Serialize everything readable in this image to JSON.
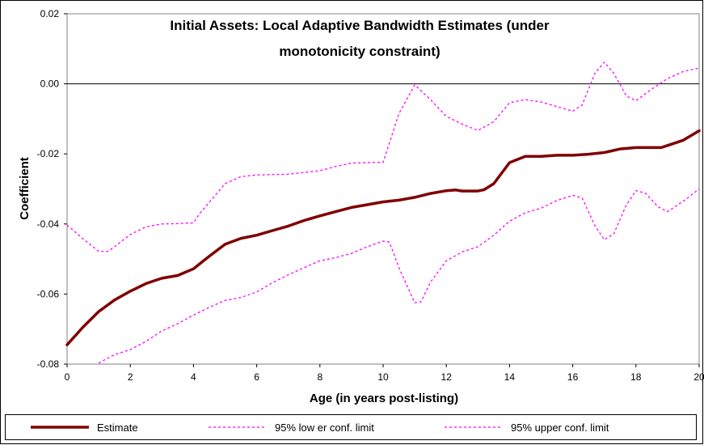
{
  "chart_data": {
    "type": "line",
    "title": "Initial Assets: Local Adaptive Bandwidth Estimates (under monotonicity constraint)",
    "title_lines": [
      "Initial Assets: Local Adaptive Bandwidth Estimates (under",
      "monotonicity constraint)"
    ],
    "xlabel": "Age (in years post-listing)",
    "ylabel": "Coefficient",
    "xlim": [
      0,
      20
    ],
    "ylim": [
      -0.08,
      0.02
    ],
    "x_ticks": [
      "0",
      "2",
      "4",
      "6",
      "8",
      "10",
      "12",
      "14",
      "16",
      "18",
      "20"
    ],
    "y_ticks": [
      "0.02",
      "0.00",
      "-0.02",
      "-0.04",
      "-0.06",
      "-0.08"
    ],
    "grid": false,
    "legend_position": "bottom",
    "series": [
      {
        "name": "Estimate",
        "color": "#800000",
        "style": "solid",
        "points": [
          [
            0,
            -0.0745
          ],
          [
            0.5,
            -0.0695
          ],
          [
            1,
            -0.065
          ],
          [
            1.5,
            -0.0617
          ],
          [
            2,
            -0.0592
          ],
          [
            2.5,
            -0.057
          ],
          [
            3,
            -0.0555
          ],
          [
            3.5,
            -0.0547
          ],
          [
            4,
            -0.0528
          ],
          [
            4.5,
            -0.0492
          ],
          [
            5,
            -0.0458
          ],
          [
            5.5,
            -0.0441
          ],
          [
            6,
            -0.0432
          ],
          [
            6.5,
            -0.0419
          ],
          [
            7,
            -0.0406
          ],
          [
            7.5,
            -0.039
          ],
          [
            8,
            -0.0377
          ],
          [
            8.5,
            -0.0365
          ],
          [
            9,
            -0.0353
          ],
          [
            9.5,
            -0.0345
          ],
          [
            10,
            -0.0337
          ],
          [
            10.5,
            -0.0332
          ],
          [
            11,
            -0.0324
          ],
          [
            11.5,
            -0.0313
          ],
          [
            12,
            -0.0305
          ],
          [
            12.3,
            -0.0303
          ],
          [
            12.5,
            -0.0306
          ],
          [
            13,
            -0.0306
          ],
          [
            13.2,
            -0.0302
          ],
          [
            13.5,
            -0.0285
          ],
          [
            14,
            -0.0225
          ],
          [
            14.5,
            -0.0207
          ],
          [
            15,
            -0.0207
          ],
          [
            15.5,
            -0.0204
          ],
          [
            16,
            -0.0204
          ],
          [
            16.5,
            -0.0201
          ],
          [
            17,
            -0.0196
          ],
          [
            17.5,
            -0.0186
          ],
          [
            18,
            -0.0182
          ],
          [
            18.5,
            -0.0182
          ],
          [
            18.8,
            -0.0182
          ],
          [
            19,
            -0.0176
          ],
          [
            19.5,
            -0.0161
          ],
          [
            20,
            -0.0134
          ]
        ]
      },
      {
        "name": "95% low er conf. limit",
        "color": "#ff00ff",
        "style": "dashed",
        "points": [
          [
            1,
            -0.0797
          ],
          [
            1.5,
            -0.0773
          ],
          [
            2,
            -0.0759
          ],
          [
            2.5,
            -0.0735
          ],
          [
            3,
            -0.0705
          ],
          [
            3.5,
            -0.0685
          ],
          [
            4,
            -0.066
          ],
          [
            4.5,
            -0.0638
          ],
          [
            5,
            -0.0618
          ],
          [
            5.5,
            -0.061
          ],
          [
            6,
            -0.0594
          ],
          [
            6.5,
            -0.0568
          ],
          [
            7,
            -0.0545
          ],
          [
            7.5,
            -0.0525
          ],
          [
            8,
            -0.0505
          ],
          [
            8.5,
            -0.0496
          ],
          [
            9,
            -0.0484
          ],
          [
            9.5,
            -0.0465
          ],
          [
            10,
            -0.0449
          ],
          [
            10.2,
            -0.0452
          ],
          [
            10.5,
            -0.0525
          ],
          [
            11,
            -0.0625
          ],
          [
            11.2,
            -0.0622
          ],
          [
            11.5,
            -0.0566
          ],
          [
            12,
            -0.0505
          ],
          [
            12.5,
            -0.048
          ],
          [
            13,
            -0.0465
          ],
          [
            13.5,
            -0.0432
          ],
          [
            14,
            -0.0392
          ],
          [
            14.5,
            -0.0368
          ],
          [
            15,
            -0.0355
          ],
          [
            15.5,
            -0.0333
          ],
          [
            16,
            -0.0318
          ],
          [
            16.3,
            -0.0326
          ],
          [
            16.7,
            -0.0405
          ],
          [
            17,
            -0.0445
          ],
          [
            17.3,
            -0.0428
          ],
          [
            17.7,
            -0.0345
          ],
          [
            18,
            -0.0305
          ],
          [
            18.3,
            -0.0312
          ],
          [
            18.7,
            -0.0351
          ],
          [
            19,
            -0.0365
          ],
          [
            19.5,
            -0.0335
          ],
          [
            20,
            -0.03
          ]
        ]
      },
      {
        "name": "95% upper conf. limit",
        "color": "#ff00ff",
        "style": "dashed",
        "points": [
          [
            0,
            -0.0403
          ],
          [
            0.5,
            -0.0442
          ],
          [
            1,
            -0.0478
          ],
          [
            1.3,
            -0.0478
          ],
          [
            1.5,
            -0.0465
          ],
          [
            2,
            -0.043
          ],
          [
            2.5,
            -0.0408
          ],
          [
            3,
            -0.04
          ],
          [
            3.5,
            -0.0399
          ],
          [
            4,
            -0.0397
          ],
          [
            4.2,
            -0.037
          ],
          [
            5,
            -0.0285
          ],
          [
            5.5,
            -0.0265
          ],
          [
            6,
            -0.026
          ],
          [
            7,
            -0.0258
          ],
          [
            8,
            -0.0248
          ],
          [
            8.5,
            -0.0236
          ],
          [
            9,
            -0.0226
          ],
          [
            9.5,
            -0.0225
          ],
          [
            10,
            -0.0224
          ],
          [
            10.5,
            -0.0085
          ],
          [
            11,
            -0.0003
          ],
          [
            11.5,
            -0.0045
          ],
          [
            12,
            -0.0093
          ],
          [
            12.5,
            -0.0115
          ],
          [
            13,
            -0.0133
          ],
          [
            13.5,
            -0.0108
          ],
          [
            14,
            -0.0054
          ],
          [
            14.5,
            -0.0045
          ],
          [
            15,
            -0.0052
          ],
          [
            15.5,
            -0.0065
          ],
          [
            16,
            -0.0078
          ],
          [
            16.3,
            -0.006
          ],
          [
            16.7,
            0.003
          ],
          [
            17,
            0.0062
          ],
          [
            17.3,
            0.003
          ],
          [
            17.7,
            -0.0035
          ],
          [
            18,
            -0.0048
          ],
          [
            18.5,
            -0.0015
          ],
          [
            19,
            0.0015
          ],
          [
            19.5,
            0.0035
          ],
          [
            20,
            0.0045
          ]
        ]
      }
    ]
  }
}
